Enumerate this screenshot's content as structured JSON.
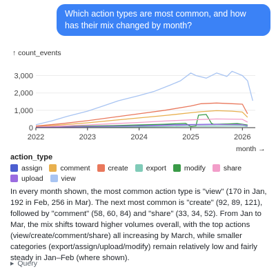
{
  "user_message": "Which action types are most common, and how has their mix changed by month?",
  "chart_data": {
    "type": "line",
    "ylabel": "↑ count_events",
    "xlabel": "month →",
    "ylim": [
      0,
      3300
    ],
    "xlim": [
      2022.0,
      2026.25
    ],
    "y_ticks": [
      "0",
      "1,000",
      "2,000",
      "3,000"
    ],
    "y_tick_values": [
      0,
      1000,
      2000,
      3000
    ],
    "x_ticks": [
      "2022",
      "2023",
      "2024",
      "2025",
      "2026"
    ],
    "x_tick_values": [
      2022,
      2023,
      2024,
      2025,
      2026
    ],
    "legend_title": "action_type",
    "series": [
      {
        "name": "assign",
        "color": "#4c5fd0",
        "x": [
          2022.0,
          2022.5,
          2023.0,
          2023.5,
          2024.0,
          2024.5,
          2025.0,
          2025.5,
          2025.9,
          2026.1
        ],
        "y": [
          20,
          40,
          60,
          80,
          110,
          150,
          180,
          200,
          220,
          120
        ]
      },
      {
        "name": "comment",
        "color": "#e8b04e",
        "x": [
          2022.0,
          2022.5,
          2023.0,
          2023.5,
          2024.0,
          2024.5,
          2025.0,
          2025.2,
          2025.5,
          2025.8,
          2026.0,
          2026.1
        ],
        "y": [
          60,
          160,
          280,
          420,
          560,
          700,
          860,
          920,
          980,
          950,
          900,
          600
        ]
      },
      {
        "name": "create",
        "color": "#e9785c",
        "x": [
          2022.0,
          2022.5,
          2023.0,
          2023.5,
          2024.0,
          2024.5,
          2025.0,
          2025.2,
          2025.5,
          2025.8,
          2026.0,
          2026.1
        ],
        "y": [
          90,
          230,
          400,
          600,
          800,
          1000,
          1250,
          1380,
          1420,
          1380,
          1350,
          800
        ]
      },
      {
        "name": "export",
        "color": "#80cbb8",
        "x": [
          2022.0,
          2022.5,
          2023.0,
          2023.5,
          2024.0,
          2024.5,
          2025.0,
          2025.5,
          2026.0,
          2026.1
        ],
        "y": [
          10,
          20,
          30,
          40,
          50,
          60,
          80,
          90,
          100,
          60
        ]
      },
      {
        "name": "modify",
        "color": "#3a9b48",
        "x": [
          2022.0,
          2022.5,
          2023.0,
          2023.5,
          2024.0,
          2024.5,
          2024.9,
          2025.0,
          2025.1,
          2025.15,
          2025.3,
          2025.4,
          2025.45,
          2025.6,
          2025.9,
          2026.1
        ],
        "y": [
          30,
          60,
          90,
          120,
          160,
          200,
          250,
          60,
          100,
          720,
          760,
          250,
          180,
          200,
          240,
          150
        ]
      },
      {
        "name": "share",
        "color": "#f29ec9",
        "x": [
          2022.0,
          2022.5,
          2023.0,
          2023.5,
          2024.0,
          2024.5,
          2025.0,
          2025.5,
          2026.0,
          2026.1
        ],
        "y": [
          35,
          90,
          160,
          230,
          300,
          380,
          450,
          500,
          480,
          320
        ]
      },
      {
        "name": "upload",
        "color": "#9b6ce0",
        "x": [
          2022.0,
          2022.5,
          2023.0,
          2023.5,
          2024.0,
          2024.5,
          2025.0,
          2025.5,
          2026.0,
          2026.1
        ],
        "y": [
          15,
          35,
          60,
          80,
          100,
          130,
          160,
          180,
          170,
          110
        ]
      },
      {
        "name": "view",
        "color": "#a8c4f2",
        "x": [
          2022.0,
          2022.3,
          2022.6,
          2023.0,
          2023.3,
          2023.6,
          2024.0,
          2024.3,
          2024.6,
          2024.8,
          2025.0,
          2025.1,
          2025.3,
          2025.5,
          2025.7,
          2025.8,
          2026.0,
          2026.1,
          2026.2
        ],
        "y": [
          170,
          380,
          650,
          950,
          1250,
          1550,
          1850,
          2100,
          2450,
          2700,
          3150,
          3000,
          2850,
          3150,
          2950,
          3250,
          3000,
          2700,
          1550
        ]
      }
    ]
  },
  "answer_text": "In every month shown, the most common action type is \"view\" (170 in Jan, 192 in Feb, 256 in Mar). The next most common is \"create\" (92, 89, 121), followed by \"comment\" (58, 60, 84) and \"share\" (33, 34, 52). From Jan to Mar, the mix shifts toward higher volumes overall, with the top actions (view/create/comment/share) all increasing by March, while smaller categories (export/assign/upload/modify) remain relatively low and fairly steady in Jan–Feb (where shown).",
  "query_label": "Query"
}
